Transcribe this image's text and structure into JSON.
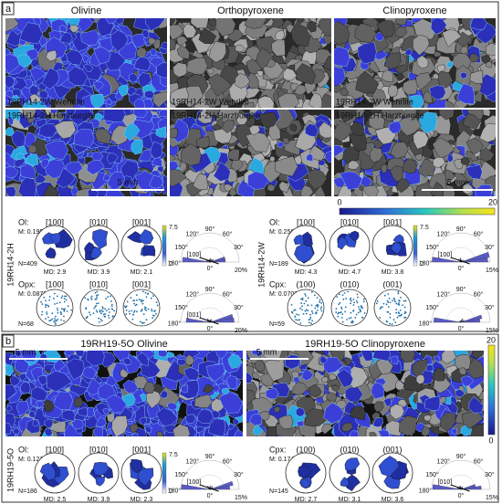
{
  "panel_a": {
    "label": "a",
    "columns": [
      "Olivine",
      "Orthopyroxene",
      "Clinopyroxene"
    ],
    "row_labels": [
      "19RH14-2W  Wehrlite",
      "19RH14-2H  Harzburgite"
    ],
    "scale_bar": "5 mm",
    "colorbar_ticks": [
      0,
      20
    ]
  },
  "polar_angles": [
    "120°",
    "90°",
    "60°",
    "150°",
    "30°",
    "180°",
    "0°"
  ],
  "pole_groups": [
    {
      "sample": "19RH14-2H",
      "phases": [
        {
          "phase": "Ol:",
          "axes": [
            "[100]",
            "[010]",
            "[001]"
          ],
          "m": "M: 0.1950",
          "n": "N=409",
          "md": [
            "MD: 2.9",
            "MD: 3.9",
            "MD: 2.1"
          ],
          "scale": [
            7.5,
            0
          ],
          "polar_axis": "[100]",
          "polar_pct": "20%"
        },
        {
          "phase": "Opx:",
          "axes": [
            "[100]",
            "[010]",
            "[001]"
          ],
          "m": "M: 0.0872",
          "n": "N=68",
          "polar_axis": "[001]",
          "polar_pct": "20%"
        }
      ]
    },
    {
      "sample": "19RH14-2W",
      "phases": [
        {
          "phase": "Ol:",
          "axes": [
            "[100]",
            "[010]",
            "[001]"
          ],
          "m": "M: 0.2564",
          "n": "N=189",
          "md": [
            "MD: 4.3",
            "MD: 4.7",
            "MD: 3.8"
          ],
          "scale": [
            7.5,
            0
          ],
          "polar_axis": "[100]",
          "polar_pct": "15%"
        },
        {
          "phase": "Cpx:",
          "axes": [
            "(100)",
            "(010)",
            "(001)"
          ],
          "m": "M: 0.0707",
          "n": "N=59",
          "polar_pct": "15%"
        }
      ]
    },
    {
      "sample": "19RH19-5O",
      "phases": [
        {
          "phase": "Ol:",
          "axes": [
            "[100]",
            "[010]",
            "[001]"
          ],
          "m": "M: 0.1211",
          "n": "N=186",
          "md": [
            "MD: 2.5",
            "MD: 3.9",
            "MD: 2.3"
          ],
          "scale": [
            7.5,
            0
          ],
          "polar_axis": "[100]",
          "polar_pct": "15%"
        },
        {
          "phase": "Cpx:",
          "axes": [
            "(100)",
            "(010)",
            "(001)"
          ],
          "m": "M: 0.1742",
          "n": "N=145",
          "md": [
            "MD: 2.7",
            "MD: 3.1",
            "MD: 3.6"
          ],
          "polar_axis": "[010]",
          "polar_pct": "15%"
        }
      ]
    }
  ],
  "panel_b": {
    "label": "b",
    "titles": [
      "19RH19-5O  Olivine",
      "19RH19-5O  Clinopyroxene"
    ],
    "scale_bar": "5 mm",
    "colorbar_ticks": [
      20,
      0
    ]
  }
}
